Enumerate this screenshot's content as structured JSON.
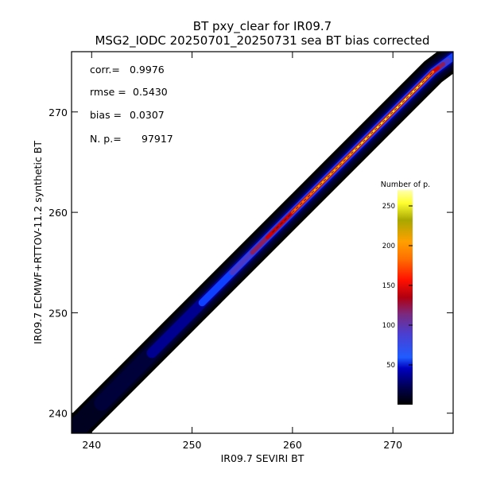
{
  "chart_data": {
    "type": "scatter",
    "title": "BT pxy_clear for IR09.7",
    "subtitle": "MSG2_IODC 20250701_20250731 sea BT bias corrected",
    "xlabel": "IR09.7 SEVIRI BT",
    "ylabel": "IR09.7 ECMWF+RTTOV-11.2 synthetic BT",
    "xlim": [
      238,
      276
    ],
    "ylim": [
      238,
      276
    ],
    "x_ticks": [
      240,
      250,
      260,
      270
    ],
    "y_ticks": [
      240,
      250,
      260,
      270
    ],
    "grid": false,
    "rendering": "density scatter (2D histogram colored by number of points)",
    "stats": {
      "corr_label": "corr.=",
      "corr_value": "0.9976",
      "rmse_label": "rmse =",
      "rmse_value": "0.5430",
      "bias_label": "bias =",
      "bias_value": "0.0307",
      "np_label": "N. p.=",
      "np_value": "97917"
    },
    "colorbar": {
      "title": "Number of p.",
      "range": [
        0,
        270
      ],
      "ticks": [
        50,
        100,
        150,
        200,
        250
      ],
      "colormap": [
        "#000000",
        "#000040",
        "#0000a0",
        "#1f5cff",
        "#4a3fd6",
        "#6f2a8f",
        "#b00010",
        "#ff0000",
        "#ff6a00",
        "#ffa200",
        "#a8a800",
        "#ffff40",
        "#ffffc0"
      ]
    },
    "density_ridge": {
      "x": [
        238,
        240,
        244,
        248,
        252,
        255,
        258,
        261,
        264,
        267,
        270,
        272,
        274,
        276
      ],
      "y": [
        238,
        240,
        244,
        248,
        252,
        255,
        258,
        261,
        264,
        267,
        270,
        272,
        274,
        275.5
      ],
      "relative_width": [
        0.55,
        0.7,
        0.8,
        0.85,
        0.9,
        0.95,
        1.0,
        1.05,
        1.05,
        1.05,
        1.05,
        1.1,
        1.15,
        1.0
      ],
      "peak_density_range": [
        259,
        274
      ]
    }
  }
}
